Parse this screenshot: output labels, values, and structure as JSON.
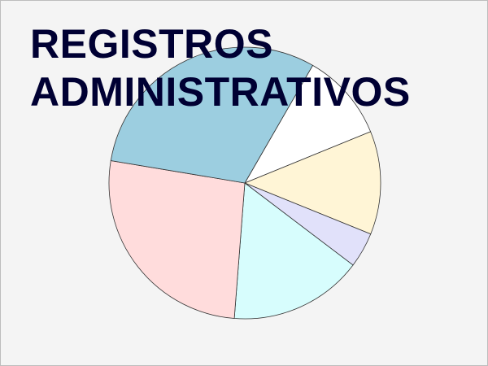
{
  "title": {
    "line1": "REGISTROS",
    "line2": "ADMINISTRATIVOS"
  },
  "chart_data": {
    "type": "pie",
    "title": "REGISTROS ADMINISTRATIVOS",
    "start_angle_deg": -60,
    "direction": "clockwise",
    "outline_color": "#333333",
    "slices": [
      {
        "value": 10.5,
        "color": "#ffffff"
      },
      {
        "value": 12.3,
        "color": "#fff5d6"
      },
      {
        "value": 4.2,
        "color": "#e1e1fa"
      },
      {
        "value": 15.9,
        "color": "#d7fdfd"
      },
      {
        "value": 26.4,
        "color": "#ffdcdc"
      },
      {
        "value": 30.7,
        "color": "#9ccee0"
      }
    ],
    "legend": "none"
  }
}
